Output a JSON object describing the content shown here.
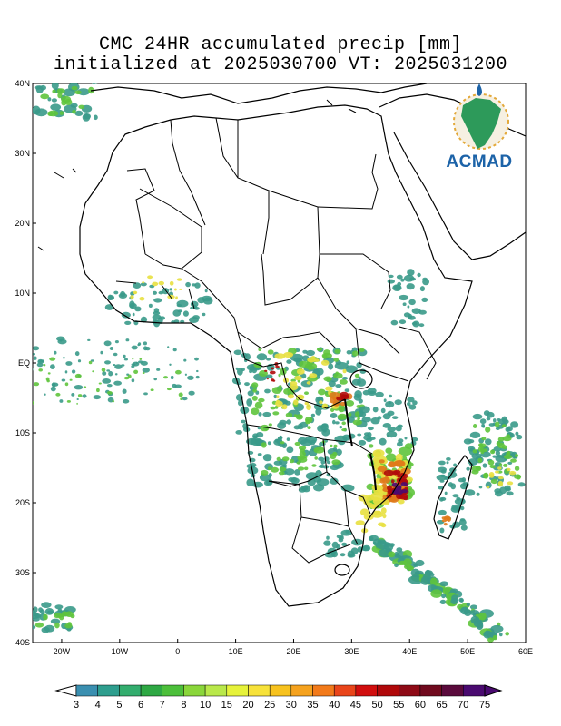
{
  "title": {
    "line1": "CMC 24HR accumulated precip [mm]",
    "line2": "initialized at 2025030700 VT: 2025031200"
  },
  "logo": {
    "text": "ACMAD",
    "icon": "africa-globe-logo"
  },
  "map": {
    "lon_range": [
      -25,
      60
    ],
    "lat_range": [
      -40,
      40
    ],
    "lat_labels": [
      "40N",
      "30N",
      "20N",
      "10N",
      "EQ",
      "10S",
      "20S",
      "30S",
      "40S"
    ],
    "lat_values": [
      40,
      30,
      20,
      10,
      0,
      -10,
      -20,
      -30,
      -40
    ],
    "lon_labels": [
      "20W",
      "10W",
      "0",
      "10E",
      "20E",
      "30E",
      "40E",
      "50E",
      "60E"
    ],
    "lon_values": [
      -20,
      -10,
      0,
      10,
      20,
      30,
      40,
      50,
      60
    ]
  },
  "colorbar": {
    "labels": [
      "3",
      "4",
      "5",
      "6",
      "7",
      "8",
      "10",
      "15",
      "20",
      "25",
      "30",
      "35",
      "40",
      "45",
      "50",
      "55",
      "60",
      "65",
      "70",
      "75"
    ],
    "colors": [
      "#ffffff",
      "#3a8fb0",
      "#2e9e8e",
      "#33ad6e",
      "#2ea844",
      "#4cbf3a",
      "#8ad63a",
      "#b9e84a",
      "#e6f23a",
      "#f7e23a",
      "#f7c21e",
      "#f5a21e",
      "#f27a1a",
      "#e9451a",
      "#d10e0e",
      "#b0080a",
      "#8e0a16",
      "#700a1e",
      "#5a0a3c",
      "#4a0a70"
    ]
  },
  "precip_colors": {
    "light": "#3a9a8a",
    "moderate": "#5fc43c",
    "heavy": "#e8e040",
    "intense": "#e07a1a",
    "extreme": "#b00a0a",
    "max": "#4a0a70"
  }
}
